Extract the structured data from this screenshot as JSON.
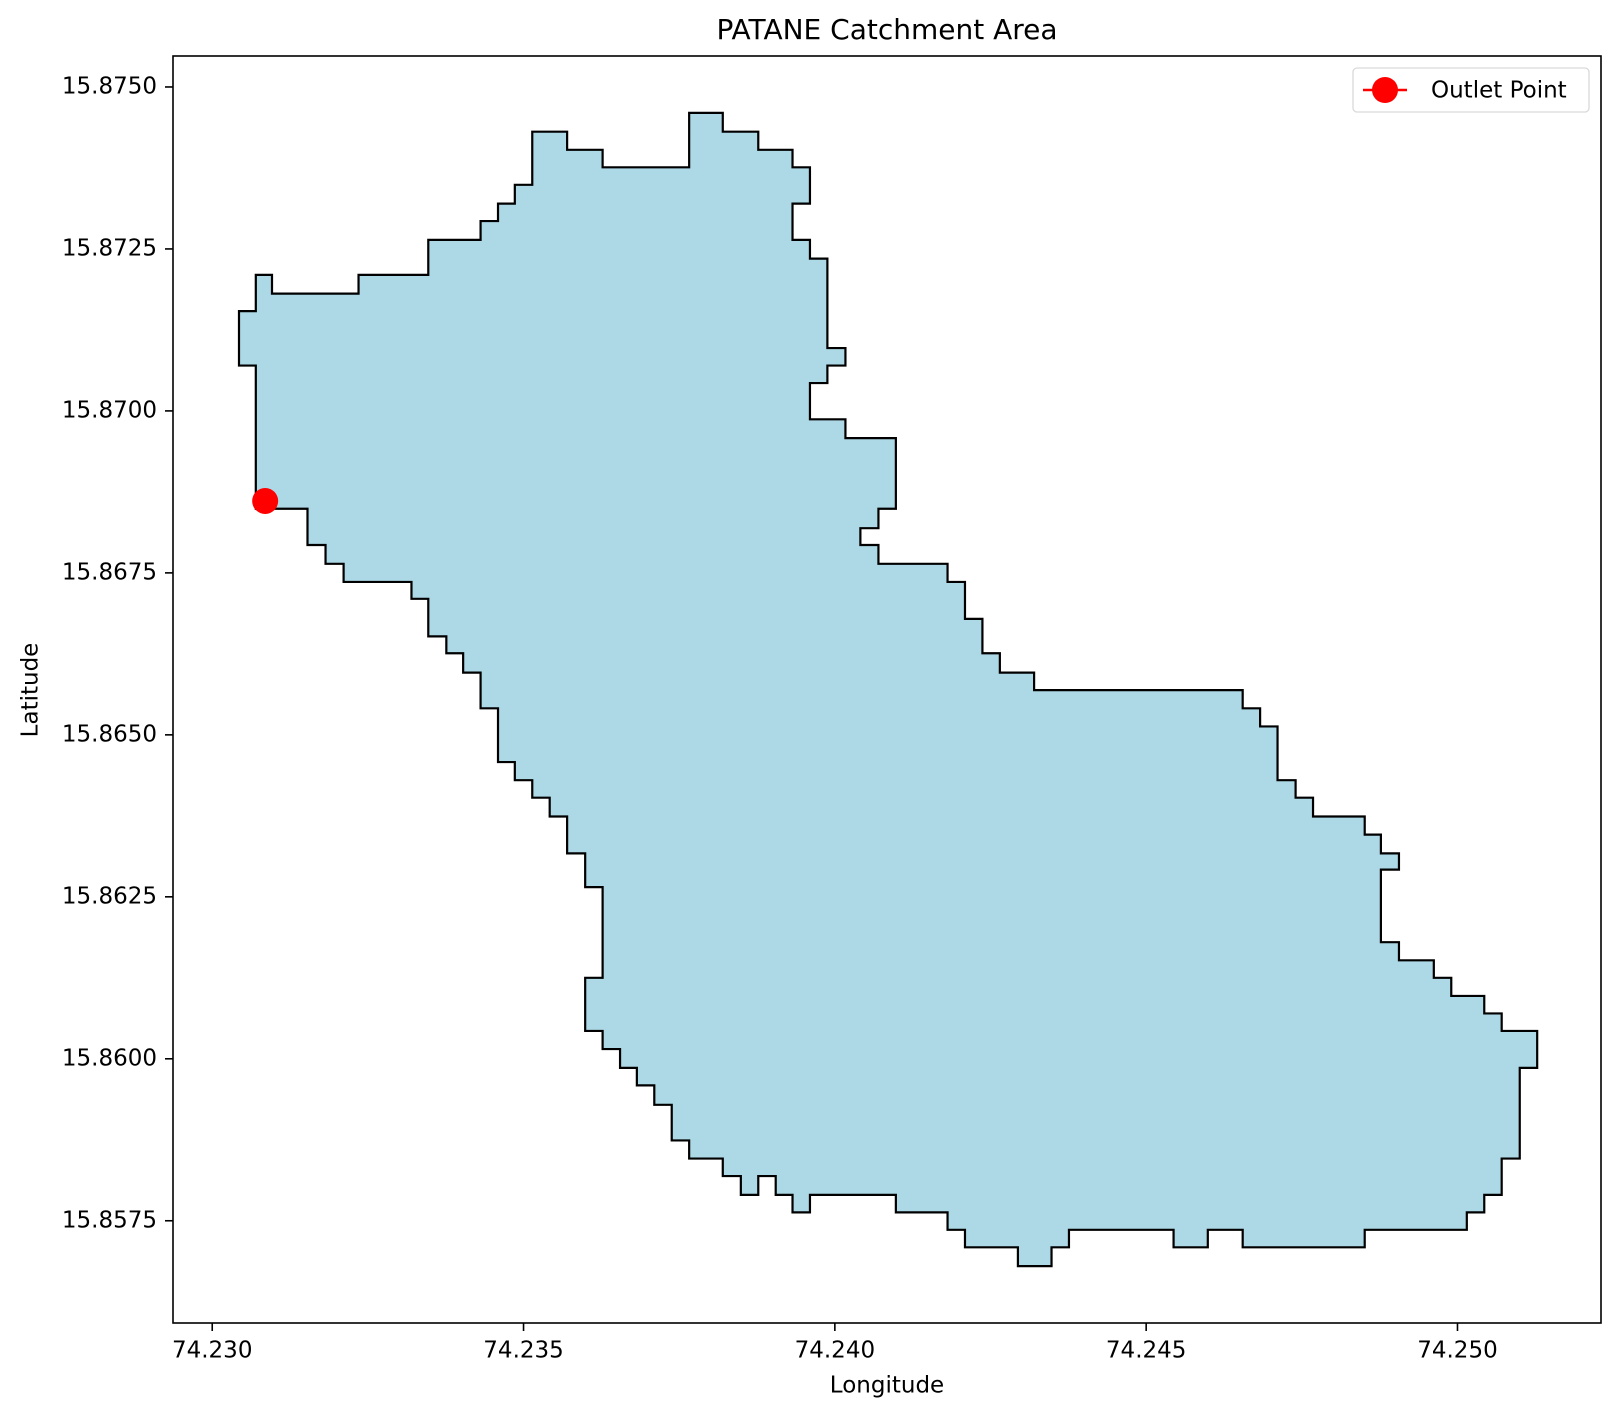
{
  "chart_data": {
    "type": "polygon",
    "title": "PATANE Catchment Area",
    "xlabel": "Longitude",
    "ylabel": "Latitude",
    "xlim": [
      74.22937,
      74.252305
    ],
    "ylim": [
      15.855922,
      15.875478
    ],
    "xticks": [
      {
        "value": 74.23,
        "label": "74.230"
      },
      74.235,
      {
        "value": 74.24,
        "label": "74.240"
      },
      74.245,
      {
        "value": 74.25,
        "label": "74.250"
      }
    ],
    "yticks": [
      {
        "value": 15.8575,
        "label": "15.8575"
      },
      {
        "value": 15.86,
        "label": "15.8600"
      },
      {
        "value": 15.8625,
        "label": "15.8625"
      },
      {
        "value": 15.865,
        "label": "15.8650"
      },
      {
        "value": 15.8675,
        "label": "15.8675"
      },
      {
        "value": 15.87,
        "label": "15.8700"
      },
      {
        "value": 15.8725,
        "label": "15.8725"
      },
      {
        "value": 15.875,
        "label": "15.8750"
      }
    ],
    "legend": "upper right",
    "polygon": {
      "fill": "#add8e6",
      "edge": "#000000",
      "x": [
        74.2307,
        74.2307,
        74.23153,
        74.23153,
        74.23182,
        74.23182,
        74.23211,
        74.23211,
        74.2332,
        74.2332,
        74.23347,
        74.23347,
        74.23376,
        74.23376,
        74.23403,
        74.23403,
        74.23431,
        74.23431,
        74.23459,
        74.23459,
        74.23486,
        74.23486,
        74.23514,
        74.23514,
        74.23542,
        74.23542,
        74.2357,
        74.2357,
        74.23599,
        74.23599,
        74.23627,
        74.23627,
        74.23599,
        74.23599,
        74.23627,
        74.23627,
        74.23655,
        74.23655,
        74.23682,
        74.23682,
        74.2371,
        74.2371,
        74.23738,
        74.23738,
        74.23766,
        74.23766,
        74.2382,
        74.2382,
        74.23849,
        74.23849,
        74.23877,
        74.23877,
        74.23905,
        74.23905,
        74.23932,
        74.23932,
        74.2396,
        74.2396,
        74.24098,
        74.24098,
        74.24181,
        74.24181,
        74.24209,
        74.24209,
        74.24294,
        74.24294,
        74.24348,
        74.24348,
        74.24376,
        74.24376,
        74.24544,
        74.24544,
        74.24599,
        74.24599,
        74.24655,
        74.24655,
        74.24851,
        74.24851,
        74.25015,
        74.25015,
        74.25043,
        74.25043,
        74.25071,
        74.25071,
        74.251,
        74.251,
        74.25128,
        74.25128,
        74.25071,
        74.25071,
        74.25043,
        74.25043,
        74.2499,
        74.2499,
        74.24962,
        74.24962,
        74.24906,
        74.24906,
        74.24877,
        74.24877,
        74.24906,
        74.24906,
        74.24877,
        74.24877,
        74.24851,
        74.24851,
        74.24768,
        74.24768,
        74.2474,
        74.2474,
        74.24711,
        74.24711,
        74.24683,
        74.24683,
        74.24655,
        74.24655,
        74.2432,
        74.2432,
        74.24265,
        74.24265,
        74.24237,
        74.24237,
        74.24209,
        74.24209,
        74.24181,
        74.24181,
        74.2407,
        74.2407,
        74.24041,
        74.24041,
        74.2407,
        74.2407,
        74.24098,
        74.24098,
        74.24017,
        74.24017,
        74.2396,
        74.2396,
        74.23988,
        74.23988,
        74.24017,
        74.24017,
        74.23988,
        74.23988,
        74.2396,
        74.2396,
        74.23932,
        74.23932,
        74.2396,
        74.2396,
        74.23932,
        74.23932,
        74.23877,
        74.23877,
        74.2382,
        74.2382,
        74.23766,
        74.23766,
        74.23627,
        74.23627,
        74.2357,
        74.2357,
        74.23514,
        74.23514,
        74.23486,
        74.23486,
        74.23459,
        74.23459,
        74.23431,
        74.23431,
        74.23347,
        74.23347,
        74.23235,
        74.23235,
        74.23096,
        74.23096,
        74.2307,
        74.2307,
        74.23043,
        74.23043
      ],
      "y": [
        15.8707,
        15.86849,
        15.86849,
        15.86793,
        15.86793,
        15.86764,
        15.86764,
        15.86736,
        15.86736,
        15.8671,
        15.8671,
        15.86652,
        15.86652,
        15.86626,
        15.86626,
        15.86596,
        15.86596,
        15.86541,
        15.86541,
        15.86458,
        15.86458,
        15.8643,
        15.8643,
        15.86403,
        15.86403,
        15.86374,
        15.86374,
        15.86317,
        15.86317,
        15.86265,
        15.86265,
        15.86125,
        15.86125,
        15.86043,
        15.86043,
        15.86015,
        15.86015,
        15.85986,
        15.85986,
        15.85959,
        15.85959,
        15.85929,
        15.85929,
        15.85874,
        15.85874,
        15.85846,
        15.85846,
        15.85819,
        15.85819,
        15.8579,
        15.8579,
        15.85819,
        15.85819,
        15.8579,
        15.8579,
        15.85763,
        15.85763,
        15.8579,
        15.8579,
        15.85763,
        15.85763,
        15.85736,
        15.85736,
        15.85709,
        15.85709,
        15.8568,
        15.8568,
        15.85709,
        15.85709,
        15.85736,
        15.85736,
        15.85709,
        15.85709,
        15.85736,
        15.85736,
        15.85709,
        15.85709,
        15.85736,
        15.85736,
        15.85763,
        15.85763,
        15.8579,
        15.8579,
        15.85846,
        15.85846,
        15.85986,
        15.85986,
        15.86043,
        15.86043,
        15.8607,
        15.8607,
        15.86097,
        15.86097,
        15.86125,
        15.86125,
        15.86152,
        15.86152,
        15.8618,
        15.8618,
        15.86292,
        15.86292,
        15.86317,
        15.86317,
        15.86346,
        15.86346,
        15.86374,
        15.86374,
        15.86403,
        15.86403,
        15.8643,
        15.8643,
        15.86513,
        15.86513,
        15.86541,
        15.86541,
        15.86569,
        15.86569,
        15.86596,
        15.86596,
        15.86626,
        15.86626,
        15.86679,
        15.86679,
        15.86736,
        15.86736,
        15.86764,
        15.86764,
        15.86793,
        15.86793,
        15.86819,
        15.86819,
        15.86849,
        15.86849,
        15.86958,
        15.86958,
        15.86987,
        15.86987,
        15.87043,
        15.87043,
        15.8707,
        15.8707,
        15.87097,
        15.87097,
        15.87235,
        15.87235,
        15.87264,
        15.87264,
        15.8732,
        15.8732,
        15.87376,
        15.87376,
        15.87403,
        15.87403,
        15.87431,
        15.87431,
        15.8746,
        15.8746,
        15.87376,
        15.87376,
        15.87403,
        15.87403,
        15.87431,
        15.87431,
        15.87349,
        15.87349,
        15.8732,
        15.8732,
        15.87293,
        15.87293,
        15.87264,
        15.87264,
        15.8721,
        15.8721,
        15.87181,
        15.87181,
        15.8721,
        15.8721,
        15.87154,
        15.87154,
        15.8707
      ]
    },
    "outlet": {
      "name": "Outlet Point",
      "color": "#ff0000",
      "x": 74.23085,
      "y": 15.86861
    }
  }
}
